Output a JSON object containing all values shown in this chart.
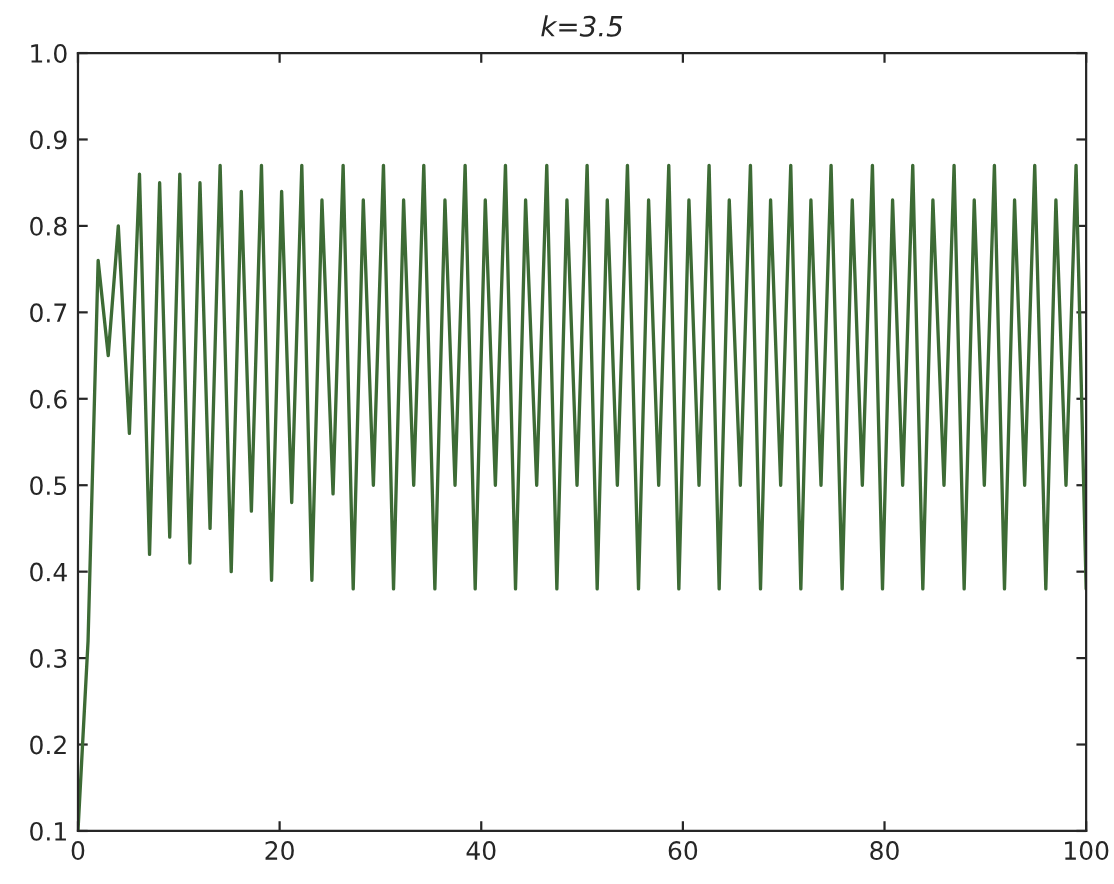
{
  "chart_data": {
    "type": "line",
    "title": "k=3.5",
    "x": [
      0,
      1,
      2,
      3,
      4,
      5.1,
      6.1,
      7.1,
      8.1,
      9.1,
      10.1,
      11.1,
      12.1,
      13.1,
      14.1,
      15.2,
      16.2,
      17.2,
      18.2,
      19.2,
      20.2,
      21.2,
      22.2,
      23.2,
      24.2,
      25.3,
      26.3,
      27.3,
      28.3,
      29.3,
      30.3,
      31.3,
      32.3,
      33.3,
      34.3,
      35.4,
      36.4,
      37.4,
      38.4,
      39.4,
      40.4,
      41.4,
      42.4,
      43.4,
      44.4,
      45.5,
      46.5,
      47.5,
      48.5,
      49.5,
      50.5,
      51.5,
      52.5,
      53.5,
      54.5,
      55.6,
      56.6,
      57.6,
      58.6,
      59.6,
      60.6,
      61.6,
      62.6,
      63.6,
      64.6,
      65.7,
      66.7,
      67.7,
      68.7,
      69.7,
      70.7,
      71.7,
      72.7,
      73.7,
      74.7,
      75.8,
      76.8,
      77.8,
      78.8,
      79.8,
      80.8,
      81.8,
      82.8,
      83.8,
      84.8,
      85.9,
      86.9,
      87.9,
      88.9,
      89.9,
      90.9,
      91.9,
      92.9,
      93.9,
      94.9,
      96.0,
      97.0,
      98.0,
      99.0,
      100.0
    ],
    "series": [
      {
        "color": "#3d6b35",
        "values": [
          0.1,
          0.32,
          0.76,
          0.65,
          0.8,
          0.56,
          0.86,
          0.42,
          0.85,
          0.44,
          0.86,
          0.41,
          0.85,
          0.45,
          0.87,
          0.4,
          0.84,
          0.47,
          0.87,
          0.39,
          0.84,
          0.48,
          0.87,
          0.39,
          0.83,
          0.49,
          0.87,
          0.38,
          0.83,
          0.5,
          0.87,
          0.38,
          0.83,
          0.5,
          0.87,
          0.38,
          0.83,
          0.5,
          0.87,
          0.38,
          0.83,
          0.5,
          0.87,
          0.38,
          0.83,
          0.5,
          0.87,
          0.38,
          0.83,
          0.5,
          0.87,
          0.38,
          0.83,
          0.5,
          0.87,
          0.38,
          0.83,
          0.5,
          0.87,
          0.38,
          0.83,
          0.5,
          0.87,
          0.38,
          0.83,
          0.5,
          0.87,
          0.38,
          0.83,
          0.5,
          0.87,
          0.38,
          0.83,
          0.5,
          0.87,
          0.38,
          0.83,
          0.5,
          0.87,
          0.38,
          0.83,
          0.5,
          0.87,
          0.38,
          0.83,
          0.5,
          0.87,
          0.38,
          0.83,
          0.5,
          0.87,
          0.38,
          0.83,
          0.5,
          0.87,
          0.38,
          0.83,
          0.5,
          0.87,
          0.38
        ]
      }
    ],
    "xlim": [
      0,
      100
    ],
    "xticks": [
      0,
      20,
      40,
      60,
      80,
      100
    ],
    "ylim": [
      0.1,
      1.0
    ],
    "yticks": [
      0.1,
      0.2,
      0.3,
      0.4,
      0.5,
      0.6,
      0.7,
      0.8,
      0.9,
      {
        "value": 1.0,
        "label": "1.0"
      }
    ],
    "grid": false,
    "legend": false,
    "marker": "none",
    "line_style": "solid"
  }
}
